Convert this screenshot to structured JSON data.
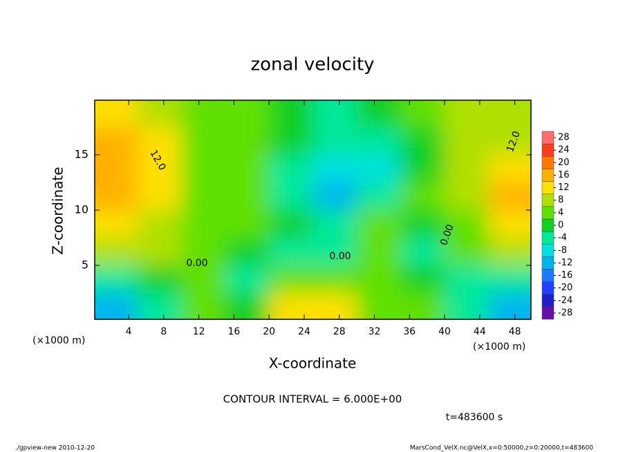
{
  "chart_data": {
    "type": "heatmap",
    "title": "zonal velocity",
    "xlabel": "X-coordinate",
    "ylabel": "Z-coordinate",
    "x_unit": "(×1000 m)",
    "y_unit": "(×1000 m)",
    "x": [
      2.5,
      7.5,
      12.5,
      17.5,
      22.5,
      27.5,
      32.5,
      37.5,
      42.5,
      47.5
    ],
    "z": [
      18.75,
      16.25,
      13.75,
      11.25,
      8.75,
      6.25,
      3.75,
      1.25
    ],
    "values": [
      [
        10,
        6,
        4,
        2,
        0,
        -4,
        -2,
        2,
        6,
        6
      ],
      [
        14,
        10,
        4,
        2,
        -2,
        -6,
        -4,
        0,
        6,
        8
      ],
      [
        16,
        12,
        4,
        2,
        -4,
        -10,
        -8,
        0,
        6,
        10
      ],
      [
        16,
        10,
        4,
        2,
        -4,
        -12,
        -6,
        2,
        6,
        14
      ],
      [
        12,
        8,
        4,
        2,
        -2,
        -4,
        2,
        -2,
        4,
        12
      ],
      [
        6,
        6,
        4,
        0,
        -4,
        -6,
        4,
        -6,
        2,
        6
      ],
      [
        -4,
        0,
        2,
        -4,
        4,
        2,
        2,
        0,
        -4,
        -6
      ],
      [
        -14,
        -6,
        2,
        0,
        10,
        12,
        2,
        4,
        -6,
        -14
      ]
    ],
    "xlim": [
      0,
      50
    ],
    "ylim": [
      0,
      20
    ],
    "xticks": [
      4,
      8,
      12,
      16,
      20,
      24,
      28,
      32,
      36,
      40,
      44,
      48
    ],
    "yticks": [
      5,
      10,
      15
    ],
    "clim": [
      -30,
      30
    ],
    "colors": [
      "#6a0dad",
      "#2020c8",
      "#1e40ff",
      "#1e78ff",
      "#00b4f0",
      "#00e0e0",
      "#00e89a",
      "#10d020",
      "#60e000",
      "#b0e000",
      "#ffe000",
      "#ffb000",
      "#ff7800",
      "#ff3c1e",
      "#ff6e6e"
    ],
    "cticks": [
      28,
      24,
      20,
      16,
      12,
      8,
      4,
      0,
      -4,
      -8,
      -12,
      -16,
      -20,
      -24,
      -28
    ],
    "contour_labels": [
      "12.0",
      "12.0",
      "0.00",
      "0.00",
      "0.00"
    ],
    "contour_interval": "CONTOUR INTERVAL = 6.000E+00",
    "time": "t=483600 s",
    "footer_left": "./gpview-new  2010-12-20",
    "footer_right": "MarsCond_VelX.nc@VelX,x=0:50000,z=0:20000,t=483600"
  }
}
